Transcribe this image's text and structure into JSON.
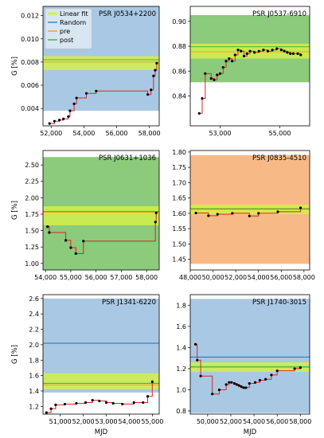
{
  "colors": {
    "random_band": "#a9c8e3",
    "random_band_green": "#8cca7c",
    "random_band_orange": "#f7ba86",
    "linear_fit": "#d4f04a",
    "random_line": "#1f6fb4",
    "pre": "#ff8c1a",
    "post": "#2ca02c",
    "step": "#d62728",
    "points": "#000000"
  },
  "legend": {
    "items": [
      "Linear fit",
      "Random",
      "pre",
      "post"
    ]
  },
  "chart_data": [
    {
      "type": "line",
      "title": "PSR J0534+2200",
      "ylabel": "G [%]",
      "xlabel": "",
      "xlim": [
        51500,
        58600
      ],
      "ylim": [
        0.0025,
        0.0128
      ],
      "xticks": [
        52000,
        54000,
        56000,
        58000
      ],
      "xtick_labels": [
        "52,000",
        "54,000",
        "56,000",
        "58,000"
      ],
      "yticks": [
        0.004,
        0.006,
        0.008,
        0.01,
        0.012
      ],
      "ytick_labels": [
        "0.004",
        "0.006",
        "0.008",
        "0.010",
        "0.012"
      ],
      "band": {
        "color": "blue",
        "range": [
          0.0038,
          0.0128
        ]
      },
      "fit_band": [
        0.0073,
        0.0085
      ],
      "hlines": [
        {
          "color": "pre",
          "y": 0.008
        },
        {
          "color": "post",
          "y": 0.0082
        }
      ],
      "points": [
        [
          51900,
          0.0027
        ],
        [
          52200,
          0.0029
        ],
        [
          52500,
          0.003
        ],
        [
          52750,
          0.0031
        ],
        [
          53050,
          0.0033
        ],
        [
          53150,
          0.0038
        ],
        [
          53400,
          0.0044
        ],
        [
          53550,
          0.0049
        ],
        [
          54150,
          0.0053
        ],
        [
          54750,
          0.0055
        ],
        [
          57900,
          0.0052
        ],
        [
          58100,
          0.0056
        ],
        [
          58250,
          0.0068
        ],
        [
          58350,
          0.0073
        ],
        [
          58450,
          0.0079
        ]
      ]
    },
    {
      "type": "line",
      "title": "PSR J0537-6910",
      "ylabel": "",
      "xlabel": "",
      "xlim": [
        52000,
        56000
      ],
      "ylim": [
        0.816,
        0.912
      ],
      "xticks": [
        53000,
        55000
      ],
      "xtick_labels": [
        "53,000",
        "55,000"
      ],
      "yticks": [
        0.84,
        0.86,
        0.88,
        0.9
      ],
      "ytick_labels": [
        "0.84",
        "0.86",
        "0.88",
        "0.90"
      ],
      "band": {
        "color": "green",
        "range": [
          0.851,
          0.905
        ]
      },
      "fit_band": [
        0.87,
        0.882
      ],
      "hlines": [
        {
          "color": "pre",
          "y": 0.8755
        },
        {
          "color": "post",
          "y": 0.8795
        }
      ],
      "points": [
        [
          52300,
          0.826
        ],
        [
          52400,
          0.838
        ],
        [
          52500,
          0.858
        ],
        [
          52700,
          0.854
        ],
        [
          52800,
          0.853
        ],
        [
          52900,
          0.857
        ],
        [
          53000,
          0.858
        ],
        [
          53100,
          0.863
        ],
        [
          53200,
          0.868
        ],
        [
          53300,
          0.87
        ],
        [
          53400,
          0.868
        ],
        [
          53500,
          0.873
        ],
        [
          53600,
          0.877
        ],
        [
          53700,
          0.876
        ],
        [
          53800,
          0.872
        ],
        [
          53900,
          0.874
        ],
        [
          54000,
          0.876
        ],
        [
          54150,
          0.875
        ],
        [
          54300,
          0.876
        ],
        [
          54450,
          0.877
        ],
        [
          54600,
          0.876
        ],
        [
          54750,
          0.877
        ],
        [
          54900,
          0.878
        ],
        [
          55050,
          0.877
        ],
        [
          55150,
          0.876
        ],
        [
          55250,
          0.875
        ],
        [
          55350,
          0.874
        ],
        [
          55450,
          0.874
        ],
        [
          55600,
          0.874
        ],
        [
          55700,
          0.873
        ]
      ]
    },
    {
      "type": "line",
      "title": "PSR J0631+1036",
      "ylabel": "G [%]",
      "xlabel": "",
      "xlim": [
        53900,
        58500
      ],
      "ylim": [
        0.9,
        2.72
      ],
      "xticks": [
        54000,
        55000,
        56000,
        57000,
        58000
      ],
      "xtick_labels": [
        "54,000",
        "55,000",
        "56,000",
        "57,000",
        "58,000"
      ],
      "yticks": [
        1.0,
        1.25,
        1.5,
        1.75,
        2.0,
        2.25,
        2.5
      ],
      "ytick_labels": [
        "1.00",
        "1.25",
        "1.50",
        "1.75",
        "2.00",
        "2.25",
        "2.50"
      ],
      "band": {
        "color": "green",
        "range": [
          0.9,
          2.62
        ]
      },
      "fit_band": [
        1.58,
        1.87
      ],
      "hlines": [
        {
          "color": "pre",
          "y": 1.78
        },
        {
          "color": "post",
          "y": 1.79
        }
      ],
      "points": [
        [
          54080,
          1.56
        ],
        [
          54150,
          1.47
        ],
        [
          54800,
          1.35
        ],
        [
          55000,
          1.24
        ],
        [
          55200,
          1.15
        ],
        [
          55500,
          1.34
        ],
        [
          58350,
          1.63
        ],
        [
          58380,
          1.77
        ]
      ]
    },
    {
      "type": "line",
      "title": "PSR J0835-4510",
      "ylabel": "",
      "xlabel": "",
      "xlim": [
        48000,
        58500
      ],
      "ylim": [
        1.415,
        1.805
      ],
      "xticks": [
        48000,
        50000,
        52000,
        54000,
        56000,
        58000
      ],
      "xtick_labels": [
        "48,000",
        "50,000",
        "52,000",
        "54,000",
        "56,000",
        "58,000"
      ],
      "yticks": [
        1.45,
        1.5,
        1.55,
        1.6,
        1.65,
        1.7,
        1.75,
        1.8
      ],
      "ytick_labels": [
        "1.45",
        "1.50",
        "1.55",
        "1.60",
        "1.65",
        "1.70",
        "1.75",
        "1.80"
      ],
      "band": {
        "color": "orange",
        "range": [
          1.435,
          1.79
        ]
      },
      "fit_band": [
        1.597,
        1.628
      ],
      "hlines": [
        {
          "color": "pre",
          "y": 1.613
        },
        {
          "color": "post",
          "y": 1.615
        }
      ],
      "points": [
        [
          48500,
          1.601
        ],
        [
          49600,
          1.592
        ],
        [
          50400,
          1.597
        ],
        [
          51700,
          1.6
        ],
        [
          53200,
          1.591
        ],
        [
          54000,
          1.6
        ],
        [
          55700,
          1.605
        ],
        [
          57700,
          1.618
        ]
      ]
    },
    {
      "type": "line",
      "title": "PSR J1341-6220",
      "ylabel": "G [%]",
      "xlabel": "MJD",
      "xlim": [
        50250,
        55300
      ],
      "ylim": [
        1.1,
        2.65
      ],
      "xticks": [
        51000,
        52000,
        53000,
        54000,
        55000
      ],
      "xtick_labels": [
        "51,000",
        "52,000",
        "53,000",
        "54,000",
        "55,000"
      ],
      "yticks": [
        1.2,
        1.4,
        1.6,
        1.8,
        2.0,
        2.2,
        2.4,
        2.6
      ],
      "ytick_labels": [
        "1.2",
        "1.4",
        "1.6",
        "1.8",
        "2.0",
        "2.2",
        "2.4",
        "2.6"
      ],
      "band": {
        "color": "blue",
        "range": [
          1.38,
          2.6
        ]
      },
      "fit_band": [
        1.42,
        1.63
      ],
      "random_line": 2.02,
      "hlines": [
        {
          "color": "pre",
          "y": 1.48
        },
        {
          "color": "post",
          "y": 1.5
        }
      ],
      "points": [
        [
          50400,
          1.12
        ],
        [
          50600,
          1.17
        ],
        [
          50800,
          1.22
        ],
        [
          51200,
          1.23
        ],
        [
          51700,
          1.24
        ],
        [
          52100,
          1.25
        ],
        [
          52400,
          1.28
        ],
        [
          52700,
          1.27
        ],
        [
          53000,
          1.25
        ],
        [
          53300,
          1.24
        ],
        [
          53700,
          1.23
        ],
        [
          54200,
          1.25
        ],
        [
          54600,
          1.25
        ],
        [
          54800,
          1.33
        ],
        [
          55000,
          1.52
        ]
      ]
    },
    {
      "type": "line",
      "title": "PSR J1740-3015",
      "ylabel": "",
      "xlabel": "MJD",
      "xlim": [
        48500,
        58800
      ],
      "ylim": [
        0.77,
        1.9
      ],
      "xticks": [
        50000,
        52000,
        54000,
        56000,
        58000
      ],
      "xtick_labels": [
        "50,000",
        "52,000",
        "54,000",
        "56,000",
        "58,000"
      ],
      "yticks": [
        0.8,
        1.0,
        1.2,
        1.4,
        1.6,
        1.8
      ],
      "ytick_labels": [
        "0.8",
        "1.0",
        "1.2",
        "1.4",
        "1.6",
        "1.8"
      ],
      "band": {
        "color": "blue",
        "range": [
          0.78,
          1.86
        ]
      },
      "fit_band": [
        1.17,
        1.26
      ],
      "random_line": 1.31,
      "hlines": [
        {
          "color": "pre",
          "y": 1.21
        },
        {
          "color": "post",
          "y": 1.22
        }
      ],
      "points": [
        [
          48950,
          1.43
        ],
        [
          49100,
          1.28
        ],
        [
          49400,
          1.13
        ],
        [
          50400,
          0.96
        ],
        [
          51000,
          1.0
        ],
        [
          51600,
          1.05
        ],
        [
          51850,
          1.07
        ],
        [
          52050,
          1.07
        ],
        [
          52300,
          1.06
        ],
        [
          52500,
          1.05
        ],
        [
          52700,
          1.04
        ],
        [
          52900,
          1.03
        ],
        [
          53100,
          1.02
        ],
        [
          53300,
          1.02
        ],
        [
          53600,
          1.06
        ],
        [
          54100,
          1.07
        ],
        [
          54500,
          1.09
        ],
        [
          55000,
          1.1
        ],
        [
          55500,
          1.14
        ],
        [
          56000,
          1.18
        ],
        [
          57500,
          1.2
        ],
        [
          58000,
          1.21
        ]
      ]
    }
  ]
}
